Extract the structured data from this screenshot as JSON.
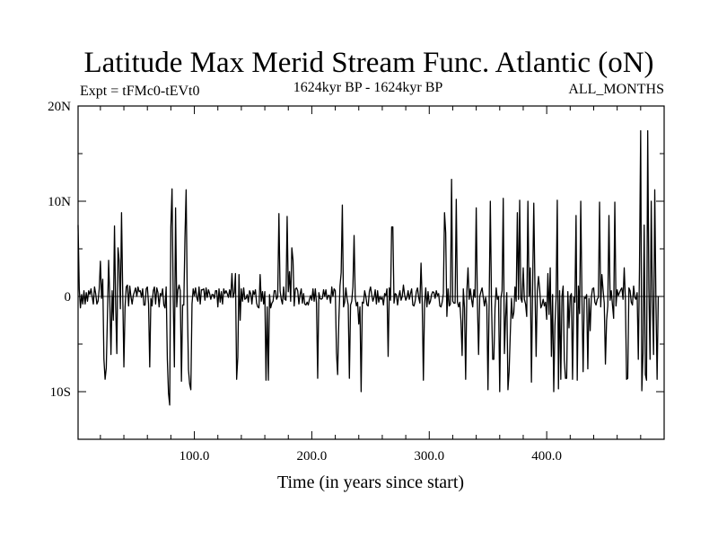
{
  "chart_data": {
    "type": "line",
    "title": "Latitude Max Merid Stream Func. Atlantic (oN)",
    "subtitle_left": "Expt = tFMc0-tEVt0",
    "subtitle_center": "1624kyr BP - 1624kyr BP",
    "subtitle_right": "ALL_MONTHS",
    "xlabel": "Time (in years since start)",
    "ylabel": "",
    "xlim": [
      1,
      500
    ],
    "ylim": [
      -15,
      20
    ],
    "x_ticks": [
      {
        "value": 100,
        "label": "100.0"
      },
      {
        "value": 200,
        "label": "200.0"
      },
      {
        "value": 300,
        "label": "300.0"
      },
      {
        "value": 400,
        "label": "400.0"
      }
    ],
    "y_ticks": [
      {
        "value": 20,
        "label": "20N"
      },
      {
        "value": 10,
        "label": "10N"
      },
      {
        "value": 0,
        "label": "0"
      },
      {
        "value": -10,
        "label": "10S"
      }
    ],
    "grid": false,
    "series": [
      {
        "color": "#000000",
        "x_start": 1,
        "x_step": 1,
        "values": [
          7.5,
          0.8,
          -1.2,
          0.2,
          -0.8,
          0.6,
          -0.8,
          0.4,
          -0.5,
          0.6,
          0.2,
          0.8,
          0.0,
          -0.8,
          1.0,
          0.3,
          -0.8,
          -0.5,
          0.8,
          3.7,
          -0.2,
          1.8,
          -6.6,
          -8.7,
          -7.5,
          -2.0,
          3.8,
          -0.2,
          -6.1,
          0.6,
          -2.5,
          7.4,
          -1.1,
          -6.0,
          5.1,
          3.7,
          -1.3,
          8.8,
          0.4,
          -7.4,
          -1.1,
          1.0,
          1.2,
          -1.0,
          1.1,
          0.0,
          -0.8,
          0.1,
          0.5,
          0.9,
          0.0,
          1.0,
          0.5,
          0.6,
          -0.1,
          0.8,
          -0.9,
          -0.9,
          0.8,
          1.0,
          -0.8,
          -7.4,
          -0.2,
          -1.0,
          0.6,
          1.0,
          -0.8,
          0.9,
          0.4,
          -1.1,
          0.3,
          0.1,
          0.8,
          -0.9,
          -1.2,
          1.0,
          -6.6,
          -10.2,
          -11.4,
          7.3,
          11.3,
          -0.2,
          -7.4,
          9.3,
          -1.1,
          0.7,
          1.2,
          0.6,
          -8.9,
          -0.9,
          -0.9,
          6.2,
          11.2,
          -0.6,
          -7.7,
          -9.2,
          -9.8,
          -0.8,
          0.8,
          0.1,
          0.9,
          -0.1,
          -0.5,
          1.0,
          -0.8,
          0.7,
          0.7,
          0.8,
          -0.4,
          0.9,
          -0.1,
          0.7,
          0.3,
          -0.3,
          0.2,
          0.2,
          -0.2,
          0.6,
          0.6,
          -1.1,
          0.8,
          -0.6,
          0.5,
          -0.8,
          0.8,
          0.3,
          0.6,
          0.3,
          -0.1,
          0.7,
          -0.1,
          2.4,
          -0.1,
          0.4,
          2.4,
          -8.7,
          -6.4,
          2.3,
          -2.5,
          0.8,
          -0.5,
          0.9,
          -0.3,
          -0.2,
          0.2,
          -0.6,
          0.6,
          0.3,
          -0.8,
          0.6,
          0.2,
          0.7,
          -0.7,
          -1.1,
          -1.2,
          2.3,
          -0.5,
          0.5,
          -0.8,
          0.5,
          -8.8,
          -1.1,
          -8.8,
          0.2,
          -1.2,
          -0.7,
          -0.5,
          0.6,
          0.6,
          -0.3,
          0.0,
          8.7,
          0.6,
          -0.3,
          -0.8,
          1.0,
          -0.3,
          -0.4,
          8.4,
          0.5,
          2.6,
          -0.5,
          5.1,
          3.8,
          -1.0,
          0.8,
          0.9,
          0.6,
          -0.8,
          0.2,
          0.8,
          -0.7,
          0.3,
          -0.8,
          -0.9,
          -0.6,
          -0.9,
          -0.3,
          0.1,
          -0.4,
          0.8,
          -0.5,
          0.8,
          -0.7,
          -8.6,
          0.4,
          -0.2,
          -0.3,
          -0.2,
          0.7,
          0.0,
          0.7,
          -0.3,
          0.1,
          0.1,
          -0.7,
          1.0,
          0.0,
          0.8,
          0.6,
          -5.9,
          -8.2,
          -2.6,
          1.1,
          2.5,
          9.6,
          -1.1,
          -0.6,
          0.9,
          -0.2,
          -0.9,
          -8.6,
          -0.9,
          -0.5,
          1.0,
          6.4,
          -0.2,
          -1.0,
          -0.6,
          -2.9,
          -1.1,
          -10.0,
          -0.6,
          -0.7,
          0.6,
          0.0,
          -0.9,
          -1.0,
          0.5,
          1.0,
          0.2,
          -0.5,
          -0.1,
          0.7,
          -0.8,
          0.6,
          -0.6,
          0.0,
          -0.3,
          -0.1,
          -0.9,
          0.3,
          0.1,
          0.8,
          -6.3,
          0.9,
          -0.4,
          7.3,
          7.3,
          -0.7,
          0.3,
          0.2,
          -0.9,
          0.0,
          0.6,
          -0.4,
          0.0,
          1.2,
          0.2,
          -0.4,
          -0.1,
          0.6,
          -0.3,
          0.3,
          0.8,
          -0.9,
          -1.0,
          -0.5,
          0.5,
          0.9,
          -0.1,
          -0.7,
          3.5,
          -0.6,
          -8.8,
          -0.8,
          0.9,
          -1.1,
          0.5,
          -0.8,
          -0.5,
          0.2,
          0.5,
          0.4,
          -0.2,
          0.6,
          0.1,
          0.3,
          -1.0,
          -1.1,
          -0.6,
          0.3,
          8.8,
          6.7,
          -2.1,
          0.8,
          -1.0,
          -0.8,
          12.3,
          -0.5,
          -0.7,
          -0.7,
          10.2,
          -0.6,
          -1.1,
          -0.6,
          -2.6,
          -6.2,
          0.8,
          -1.2,
          -8.7,
          0.5,
          3.0,
          -0.3,
          0.8,
          -0.3,
          -1.1,
          0.7,
          -0.1,
          9.3,
          -0.7,
          -6.1,
          0.0,
          0.5,
          0.9,
          -0.1,
          -1.0,
          -0.1,
          -0.9,
          -9.8,
          -0.6,
          10.0,
          -0.6,
          -6.6,
          -6.6,
          -1.2,
          0.9,
          -0.3,
          0.0,
          -10.0,
          -0.2,
          0.6,
          10.3,
          -6.0,
          -2.2,
          0.4,
          -9.8,
          -7.9,
          -3.9,
          -0.2,
          -2.3,
          -1.7,
          1.0,
          -0.5,
          8.8,
          -0.3,
          10.1,
          -0.2,
          -0.6,
          3.0,
          -0.3,
          -0.8,
          -2.1,
          10.0,
          0.0,
          3.0,
          -9.0,
          0.9,
          9.8,
          1.0,
          -6.3,
          0.6,
          2.1,
          0.8,
          -1.2,
          -0.9,
          -0.3,
          -1.0,
          -0.6,
          -2.4,
          2.4,
          -1.9,
          3.0,
          -6.3,
          0.2,
          -10.0,
          -3.1,
          -0.1,
          10.1,
          -9.7,
          0.6,
          -8.7,
          0.0,
          1.1,
          -6.7,
          -8.6,
          -8.6,
          0.5,
          -3.3,
          0.0,
          0.3,
          -8.7,
          -0.1,
          -0.6,
          8.5,
          -8.8,
          1.1,
          -1.8,
          10.0,
          -0.1,
          -7.9,
          -0.1,
          -0.2,
          0.2,
          -7.6,
          -0.2,
          -3.6,
          -0.1,
          0.8,
          0.9,
          -0.6,
          -0.9,
          -0.3,
          -0.1,
          9.9,
          -1.1,
          2.3,
          0.7,
          -0.7,
          -7.1,
          -2.5,
          -1.0,
          8.5,
          -0.4,
          0.6,
          -0.9,
          -2.3,
          9.9,
          -1.0,
          0.7,
          0.1,
          0.4,
          0.7,
          0.9,
          -0.3,
          3.0,
          -0.3,
          -8.7,
          -8.6,
          0.9,
          0.6,
          -0.6,
          -0.9,
          1.1,
          -0.1,
          -0.3,
          0.4,
          -6.6,
          3.0,
          17.4,
          -9.9,
          -6.0,
          7.5,
          -8.2,
          -8.8,
          17.4,
          0.8,
          -6.6,
          10.0,
          -0.3,
          -6.1,
          11.2,
          -0.5,
          -8.7,
          0.0
        ]
      }
    ]
  }
}
